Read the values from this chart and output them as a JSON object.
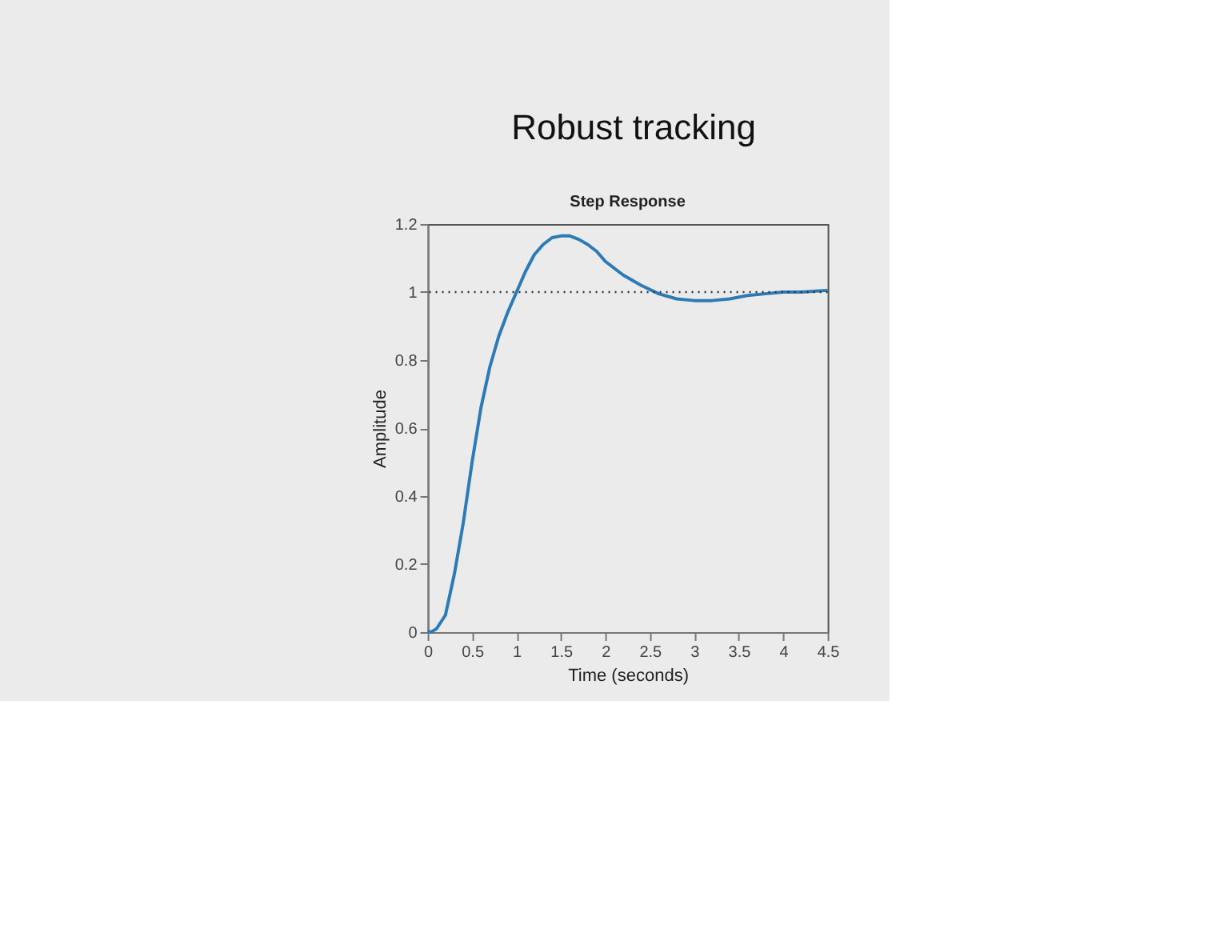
{
  "chart_data": {
    "type": "line",
    "title": "Robust tracking",
    "subtitle": "Step Response",
    "xlabel": "Time (seconds)",
    "ylabel": "Amplitude",
    "x": [
      0,
      0.05,
      0.1,
      0.2,
      0.3,
      0.4,
      0.5,
      0.6,
      0.7,
      0.8,
      0.9,
      1.0,
      1.1,
      1.2,
      1.3,
      1.4,
      1.5,
      1.6,
      1.7,
      1.8,
      1.9,
      2.0,
      2.2,
      2.4,
      2.6,
      2.8,
      3.0,
      3.2,
      3.4,
      3.6,
      3.8,
      4.0,
      4.2,
      4.5
    ],
    "series": [
      {
        "color": "#2d7bb6",
        "values": [
          0,
          0.002,
          0.01,
          0.05,
          0.17,
          0.32,
          0.5,
          0.66,
          0.78,
          0.87,
          0.94,
          1.0,
          1.06,
          1.11,
          1.14,
          1.16,
          1.165,
          1.165,
          1.155,
          1.14,
          1.12,
          1.09,
          1.05,
          1.02,
          0.995,
          0.98,
          0.975,
          0.975,
          0.98,
          0.99,
          0.995,
          1.0,
          1.0,
          1.005
        ]
      }
    ],
    "xlim": [
      0,
      4.5
    ],
    "xticks": [
      0,
      0.5,
      1,
      1.5,
      2,
      2.5,
      3,
      3.5,
      4,
      4.5
    ],
    "ylim": [
      0,
      1.2
    ],
    "yticks": [
      0,
      0.2,
      0.4,
      0.6,
      0.8,
      1,
      1.2
    ],
    "ref_lines": [
      {
        "axis": "y",
        "value": 1,
        "color": "#333333",
        "line_style": "dotted"
      }
    ],
    "grid": false,
    "marker": "none",
    "line_style": "solid"
  }
}
